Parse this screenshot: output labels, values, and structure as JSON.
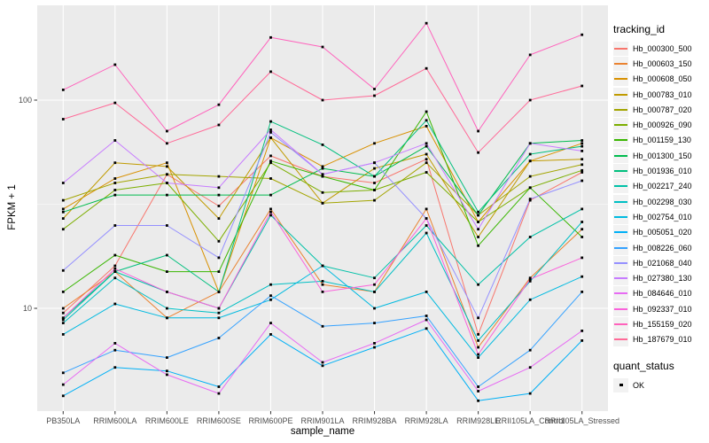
{
  "figure": {
    "background": "#FFFFFF",
    "panel_background": "#EBEBEB",
    "grid_color": "#FFFFFF",
    "tick_color": "#333333",
    "tick_text_color": "#4D4D4D",
    "legend_key_background": "#F2F2F2",
    "point_color": "#000000"
  },
  "chart_data": {
    "type": "line",
    "title": "",
    "x_label": "sample_name",
    "y_label": "FPKM + 1",
    "y_scale": "log10",
    "grid": true,
    "legend_position": "right",
    "ylim": [
      3.2,
      285
    ],
    "y_ticks": [
      {
        "label": "100",
        "value": 100
      },
      {
        "label": "10",
        "value": 10
      }
    ],
    "y_minor_ticks": [
      31.62,
      3.162
    ],
    "categories": [
      "PB350LA",
      "RRIM600LA",
      "RRIM600LE",
      "RRIM600SE",
      "RRIM600PE",
      "RRIM901LA",
      "RRIM928BA",
      "RRIM928LA",
      "RRIM928LE",
      "RRII105LA_Control",
      "RRII105LA_Stressed"
    ],
    "legend_title": "tracking_id",
    "series": [
      {
        "name": "Hb_000300_500",
        "color": "#F8766D",
        "values": [
          9.5,
          16,
          44,
          31,
          54,
          43,
          40,
          52,
          7.5,
          33,
          45
        ]
      },
      {
        "name": "Hb_000603_150",
        "color": "#EA8331",
        "values": [
          10,
          15,
          9,
          12,
          30,
          13,
          12,
          30,
          6.5,
          14,
          24
        ]
      },
      {
        "name": "Hb_000608_050",
        "color": "#D89000",
        "values": [
          30,
          42,
          50,
          12,
          66,
          48,
          62,
          75,
          26,
          51,
          62
        ]
      },
      {
        "name": "Hb_000783_010",
        "color": "#C09B00",
        "values": [
          27,
          50,
          48,
          27,
          66,
          32,
          47,
          55,
          22,
          51,
          52
        ]
      },
      {
        "name": "Hb_000787_020",
        "color": "#A3A500",
        "values": [
          33,
          40,
          44,
          43,
          42,
          32,
          33,
          50,
          28,
          43,
          49
        ]
      },
      {
        "name": "Hb_000926_090",
        "color": "#7CAE00",
        "values": [
          24,
          37,
          40,
          21,
          50,
          36,
          37,
          45,
          26,
          38,
          46
        ]
      },
      {
        "name": "Hb_001159_130",
        "color": "#39B600",
        "values": [
          12,
          18,
          15,
          15,
          51,
          43,
          37,
          88,
          20,
          38,
          22
        ]
      },
      {
        "name": "Hb_001300_150",
        "color": "#00BB4E",
        "values": [
          29,
          35,
          35,
          35,
          35,
          47,
          43,
          60,
          28,
          62,
          64
        ]
      },
      {
        "name": "Hb_001936_010",
        "color": "#00BF7D",
        "values": [
          9,
          15,
          18,
          12,
          79,
          61,
          43,
          80,
          29,
          55,
          60
        ]
      },
      {
        "name": "Hb_002217_240",
        "color": "#00C1A7",
        "values": [
          8.8,
          15,
          12,
          10,
          28,
          16,
          14,
          25,
          13,
          22,
          30
        ]
      },
      {
        "name": "Hb_002298_030",
        "color": "#00BFC4",
        "values": [
          8.5,
          14,
          10,
          9.5,
          13,
          13.5,
          12,
          23,
          7,
          13.5,
          26
        ]
      },
      {
        "name": "Hb_002754_010",
        "color": "#00BAE0",
        "values": [
          7.5,
          10.5,
          9,
          9,
          11,
          16,
          10,
          12,
          5.8,
          11,
          14.2
        ]
      },
      {
        "name": "Hb_005051_020",
        "color": "#00B0F6",
        "values": [
          3.8,
          5.2,
          5,
          4.2,
          7.5,
          5.3,
          6.5,
          8,
          3.6,
          3.9,
          7
        ]
      },
      {
        "name": "Hb_008226_060",
        "color": "#35A2FF",
        "values": [
          4.9,
          6.3,
          5.8,
          7.2,
          11.5,
          8.2,
          8.5,
          9.2,
          4.2,
          6.3,
          12
        ]
      },
      {
        "name": "Hb_021068_040",
        "color": "#9590FF",
        "values": [
          15.2,
          25,
          25,
          17.5,
          70,
          44,
          50,
          27,
          9,
          33.5,
          41
        ]
      },
      {
        "name": "Hb_027380_130",
        "color": "#C77CFF",
        "values": [
          40,
          64,
          40,
          38,
          72,
          44,
          50,
          62,
          24,
          62,
          57
        ]
      },
      {
        "name": "Hb_084646_010",
        "color": "#E76BF3",
        "values": [
          4.3,
          6.8,
          4.8,
          3.9,
          8.5,
          5.5,
          6.8,
          8.8,
          4,
          5.2,
          7.8
        ]
      },
      {
        "name": "Hb_092337_010",
        "color": "#FA62DB",
        "values": [
          9,
          15.5,
          12,
          10,
          29,
          12,
          13,
          27,
          6,
          13.8,
          17.5
        ]
      },
      {
        "name": "Hb_155159_020",
        "color": "#FF62BC",
        "values": [
          112,
          148,
          71,
          95,
          200,
          180,
          113,
          234,
          71,
          165,
          206
        ]
      },
      {
        "name": "Hb_187679_010",
        "color": "#FF6A98",
        "values": [
          81,
          97,
          62,
          76,
          137,
          100,
          105,
          142,
          56,
          100,
          117
        ]
      }
    ],
    "legend2_title": "quant_status",
    "legend2_items": [
      {
        "label": "OK"
      }
    ]
  }
}
